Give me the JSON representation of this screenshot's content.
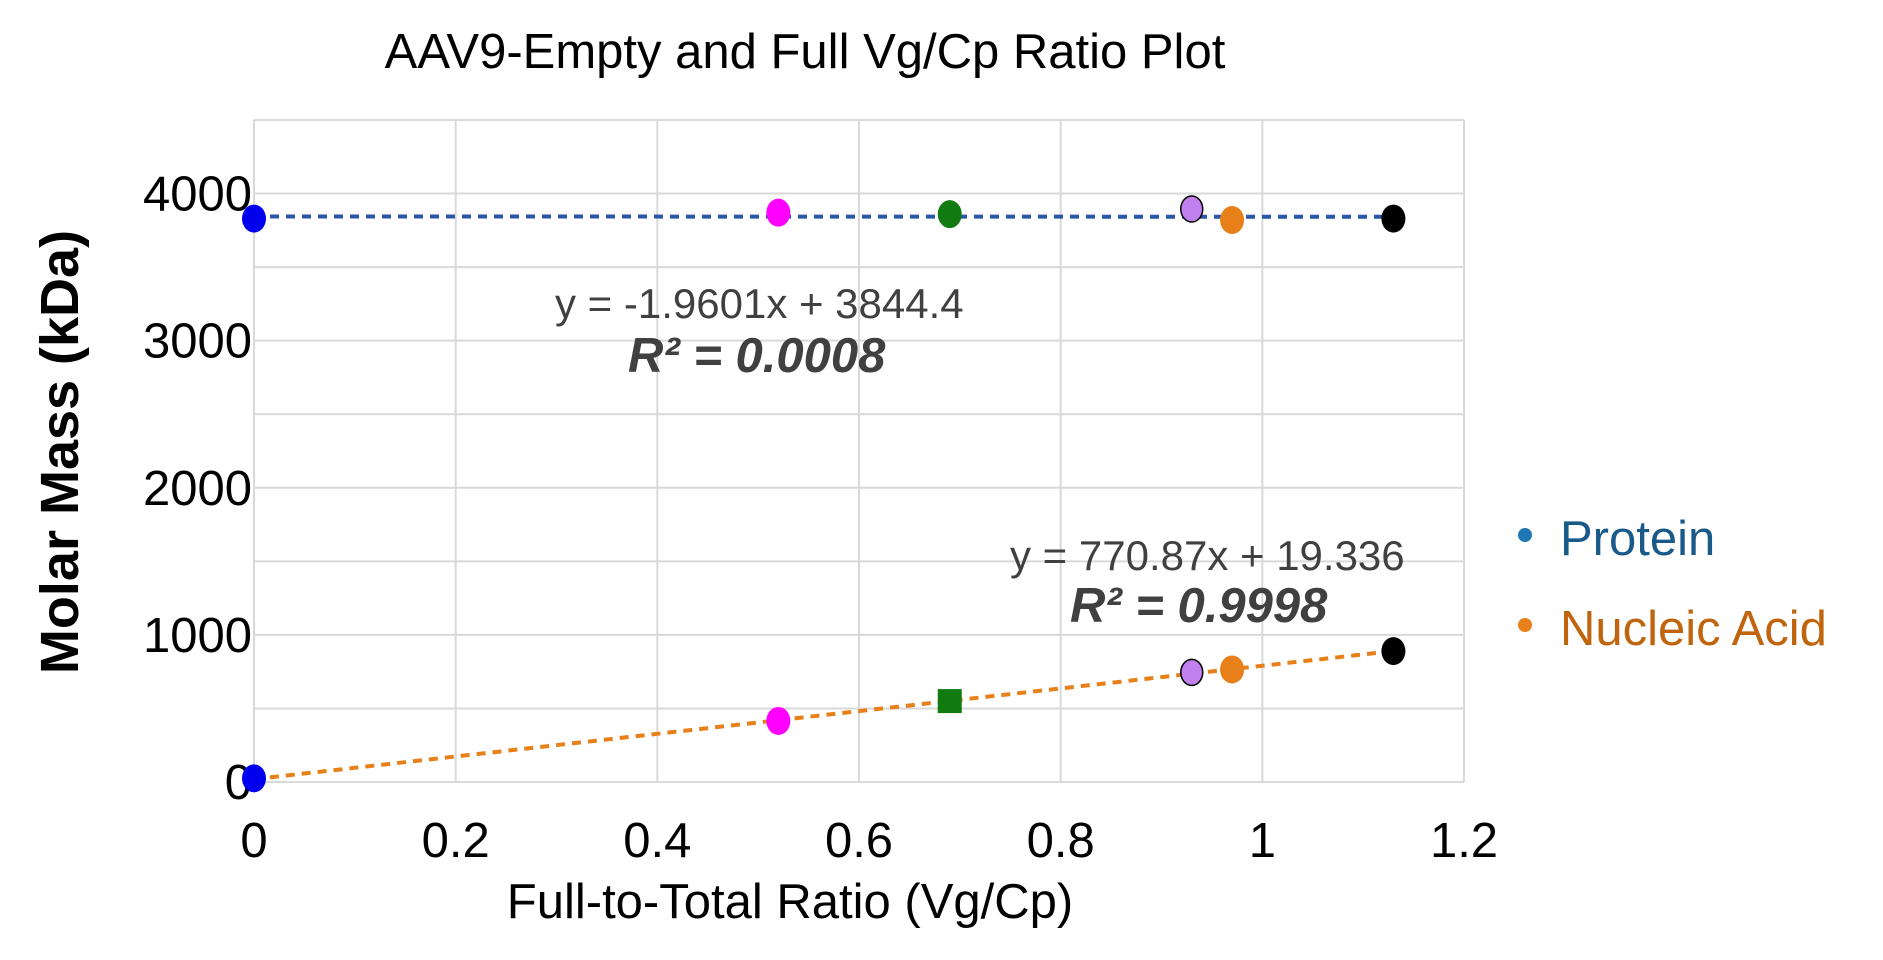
{
  "chart_data": {
    "type": "scatter",
    "title": "AAV9-Empty and Full Vg/Cp Ratio Plot",
    "xlabel": "Full-to-Total Ratio (Vg/Cp)",
    "ylabel": "Molar Mass (kDa)",
    "xlim": [
      0,
      1.2
    ],
    "ylim": [
      0,
      4500
    ],
    "x_ticks": [
      "0",
      "0.2",
      "0.4",
      "0.6",
      "0.8",
      "1",
      "1.2"
    ],
    "x_tick_values": [
      0,
      0.2,
      0.4,
      0.6,
      0.8,
      1,
      1.2
    ],
    "y_ticks": [
      "0",
      "1000",
      "2000",
      "3000",
      "4000"
    ],
    "y_tick_values": [
      0,
      1000,
      2000,
      3000,
      4000
    ],
    "y_minor_grid": [
      500,
      1500,
      2500,
      3500,
      4500
    ],
    "grid": true,
    "legend_position": "right",
    "series": [
      {
        "name": "Protein",
        "legend_color": "#1f77b4",
        "label_color": "#1a5a8a",
        "trend_color": "#2a56a8",
        "trendline": {
          "slope": -1.9601,
          "intercept": 3844.4,
          "x_range": [
            0,
            1.13
          ]
        },
        "equation": "y = -1.9601x + 3844.4",
        "r2": "R² = 0.0008",
        "points": [
          {
            "x": 0.0,
            "y": 3830,
            "color": "#0000ee",
            "shape": "circle"
          },
          {
            "x": 0.52,
            "y": 3870,
            "color": "#ff00ff",
            "shape": "circle"
          },
          {
            "x": 0.69,
            "y": 3860,
            "color": "#117a11",
            "shape": "circle"
          },
          {
            "x": 0.93,
            "y": 3895,
            "color": "#c080ee",
            "shape": "circle-outline"
          },
          {
            "x": 0.97,
            "y": 3820,
            "color": "#e8801a",
            "shape": "circle"
          },
          {
            "x": 1.13,
            "y": 3830,
            "color": "#000000",
            "shape": "circle"
          }
        ]
      },
      {
        "name": "Nucleic Acid",
        "legend_color": "#e8801a",
        "label_color": "#c0650e",
        "trend_color": "#e8801a",
        "trendline": {
          "slope": 770.87,
          "intercept": 19.336,
          "x_range": [
            0,
            1.13
          ]
        },
        "equation": "y = 770.87x + 19.336",
        "r2": "R² = 0.9998",
        "points": [
          {
            "x": 0.0,
            "y": 25,
            "color": "#0000ee",
            "shape": "circle"
          },
          {
            "x": 0.52,
            "y": 415,
            "color": "#ff00ff",
            "shape": "circle"
          },
          {
            "x": 0.69,
            "y": 550,
            "color": "#117a11",
            "shape": "square"
          },
          {
            "x": 0.93,
            "y": 745,
            "color": "#c080ee",
            "shape": "circle-outline"
          },
          {
            "x": 0.97,
            "y": 765,
            "color": "#e8801a",
            "shape": "circle"
          },
          {
            "x": 1.13,
            "y": 890,
            "color": "#000000",
            "shape": "circle"
          }
        ]
      }
    ]
  }
}
